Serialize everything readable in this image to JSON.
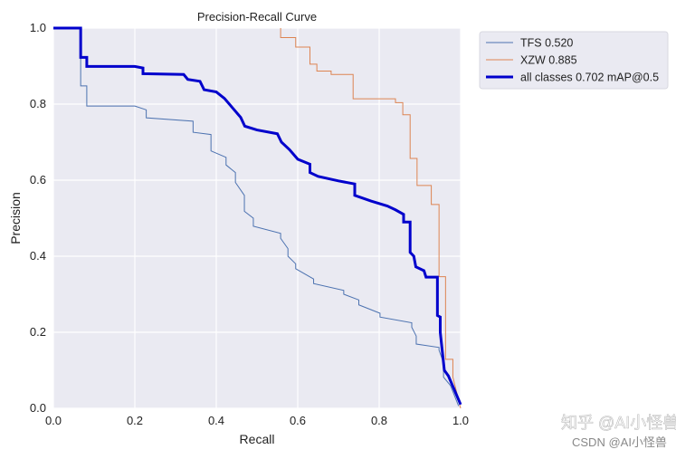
{
  "chart_data": {
    "type": "line",
    "title": "Precision-Recall Curve",
    "xlabel": "Recall",
    "ylabel": "Precision",
    "xlim": [
      0,
      1
    ],
    "ylim": [
      0,
      1
    ],
    "xticks": [
      "0.0",
      "0.2",
      "0.4",
      "0.6",
      "0.8",
      "1.0"
    ],
    "yticks": [
      "0.0",
      "0.2",
      "0.4",
      "0.6",
      "0.8",
      "1.0"
    ],
    "grid": true,
    "legend_position": "outside-top-right",
    "background_color": "#eaeaf2",
    "series": [
      {
        "name": "TFS 0.520",
        "color": "#4c72b0",
        "points": [
          [
            0,
            1
          ],
          [
            0.067,
            1
          ],
          [
            0.067,
            0.848
          ],
          [
            0.082,
            0.848
          ],
          [
            0.082,
            0.795
          ],
          [
            0.2,
            0.795
          ],
          [
            0.228,
            0.785
          ],
          [
            0.228,
            0.764
          ],
          [
            0.343,
            0.755
          ],
          [
            0.343,
            0.726
          ],
          [
            0.387,
            0.72
          ],
          [
            0.387,
            0.677
          ],
          [
            0.424,
            0.66
          ],
          [
            0.424,
            0.64
          ],
          [
            0.447,
            0.62
          ],
          [
            0.447,
            0.594
          ],
          [
            0.469,
            0.56
          ],
          [
            0.469,
            0.518
          ],
          [
            0.491,
            0.5
          ],
          [
            0.491,
            0.479
          ],
          [
            0.558,
            0.46
          ],
          [
            0.558,
            0.447
          ],
          [
            0.576,
            0.42
          ],
          [
            0.576,
            0.4
          ],
          [
            0.595,
            0.38
          ],
          [
            0.595,
            0.367
          ],
          [
            0.639,
            0.34
          ],
          [
            0.639,
            0.328
          ],
          [
            0.713,
            0.31
          ],
          [
            0.713,
            0.3
          ],
          [
            0.75,
            0.285
          ],
          [
            0.75,
            0.272
          ],
          [
            0.802,
            0.25
          ],
          [
            0.802,
            0.24
          ],
          [
            0.88,
            0.225
          ],
          [
            0.88,
            0.213
          ],
          [
            0.891,
            0.19
          ],
          [
            0.891,
            0.169
          ],
          [
            0.947,
            0.16
          ],
          [
            0.947,
            0.153
          ],
          [
            0.958,
            0.12
          ],
          [
            0.958,
            0.082
          ],
          [
            0.975,
            0.06
          ],
          [
            0.995,
            0.006
          ]
        ]
      },
      {
        "name": "XZW 0.885",
        "color": "#dd8452",
        "points": [
          [
            0.558,
            1
          ],
          [
            0.558,
            0.975
          ],
          [
            0.595,
            0.975
          ],
          [
            0.595,
            0.95
          ],
          [
            0.63,
            0.95
          ],
          [
            0.63,
            0.905
          ],
          [
            0.647,
            0.905
          ],
          [
            0.647,
            0.887
          ],
          [
            0.682,
            0.887
          ],
          [
            0.682,
            0.878
          ],
          [
            0.736,
            0.878
          ],
          [
            0.736,
            0.814
          ],
          [
            0.84,
            0.814
          ],
          [
            0.84,
            0.804
          ],
          [
            0.858,
            0.804
          ],
          [
            0.858,
            0.772
          ],
          [
            0.876,
            0.772
          ],
          [
            0.876,
            0.657
          ],
          [
            0.893,
            0.657
          ],
          [
            0.893,
            0.586
          ],
          [
            0.928,
            0.586
          ],
          [
            0.928,
            0.536
          ],
          [
            0.947,
            0.536
          ],
          [
            0.947,
            0.346
          ],
          [
            0.963,
            0.346
          ],
          [
            0.963,
            0.129
          ],
          [
            0.981,
            0.129
          ],
          [
            0.981,
            0.082
          ],
          [
            1.0,
            0.0
          ]
        ]
      },
      {
        "name": "all classes 0.702 mAP@0.5",
        "color": "#0000cc",
        "points": [
          [
            0,
            1
          ],
          [
            0.067,
            1
          ],
          [
            0.067,
            0.923
          ],
          [
            0.082,
            0.923
          ],
          [
            0.082,
            0.899
          ],
          [
            0.2,
            0.899
          ],
          [
            0.22,
            0.895
          ],
          [
            0.22,
            0.88
          ],
          [
            0.32,
            0.878
          ],
          [
            0.33,
            0.865
          ],
          [
            0.36,
            0.86
          ],
          [
            0.37,
            0.838
          ],
          [
            0.4,
            0.832
          ],
          [
            0.42,
            0.815
          ],
          [
            0.44,
            0.79
          ],
          [
            0.46,
            0.765
          ],
          [
            0.47,
            0.742
          ],
          [
            0.5,
            0.732
          ],
          [
            0.55,
            0.722
          ],
          [
            0.56,
            0.7
          ],
          [
            0.58,
            0.68
          ],
          [
            0.6,
            0.655
          ],
          [
            0.63,
            0.642
          ],
          [
            0.63,
            0.62
          ],
          [
            0.65,
            0.61
          ],
          [
            0.7,
            0.598
          ],
          [
            0.74,
            0.59
          ],
          [
            0.74,
            0.56
          ],
          [
            0.78,
            0.545
          ],
          [
            0.82,
            0.532
          ],
          [
            0.84,
            0.522
          ],
          [
            0.86,
            0.51
          ],
          [
            0.86,
            0.49
          ],
          [
            0.876,
            0.49
          ],
          [
            0.876,
            0.41
          ],
          [
            0.885,
            0.4
          ],
          [
            0.89,
            0.372
          ],
          [
            0.91,
            0.362
          ],
          [
            0.915,
            0.345
          ],
          [
            0.943,
            0.345
          ],
          [
            0.943,
            0.244
          ],
          [
            0.95,
            0.24
          ],
          [
            0.95,
            0.2
          ],
          [
            0.96,
            0.1
          ],
          [
            0.97,
            0.085
          ],
          [
            1.0,
            0.01
          ]
        ]
      }
    ]
  },
  "watermarks": [
    "知乎 @AI小怪兽",
    "CSDN @AI小怪兽"
  ]
}
